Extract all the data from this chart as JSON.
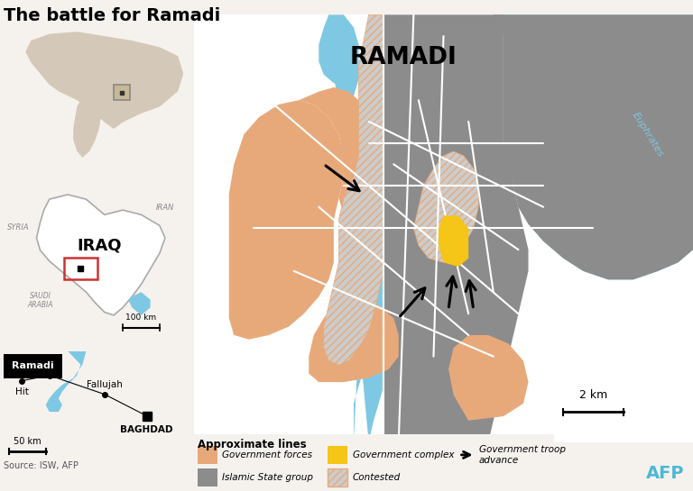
{
  "title": "The battle for Ramadi",
  "bg_color": "#f5f2ee",
  "main_map_bg": "#f5f2ee",
  "river_color": "#7ec8e3",
  "gov_forces_color": "#e8a97a",
  "is_group_color": "#8c8c8c",
  "gov_complex_color": "#f5c518",
  "road_color": "#d8d4ce",
  "road_stroke": "#ffffff",
  "border_color": "#cccccc",
  "euphrates_label": "Euphrates",
  "ramadi_label": "RAMADI",
  "scale_label": "2 km",
  "source_text": "Source: ISW, AFP",
  "afp_color": "#4db8d4",
  "legend_title": "Approximate lines",
  "world_map_ocean": "#b8d8e8",
  "world_map_land": "#d4c9b8",
  "iraq_map_bg": "#e8e0d4",
  "iraq_map_ocean": "#b8d8e8",
  "iraq_land": "#f0ede6",
  "local_map_bg": "#d4e8d4",
  "local_land": "#e8e0d0"
}
